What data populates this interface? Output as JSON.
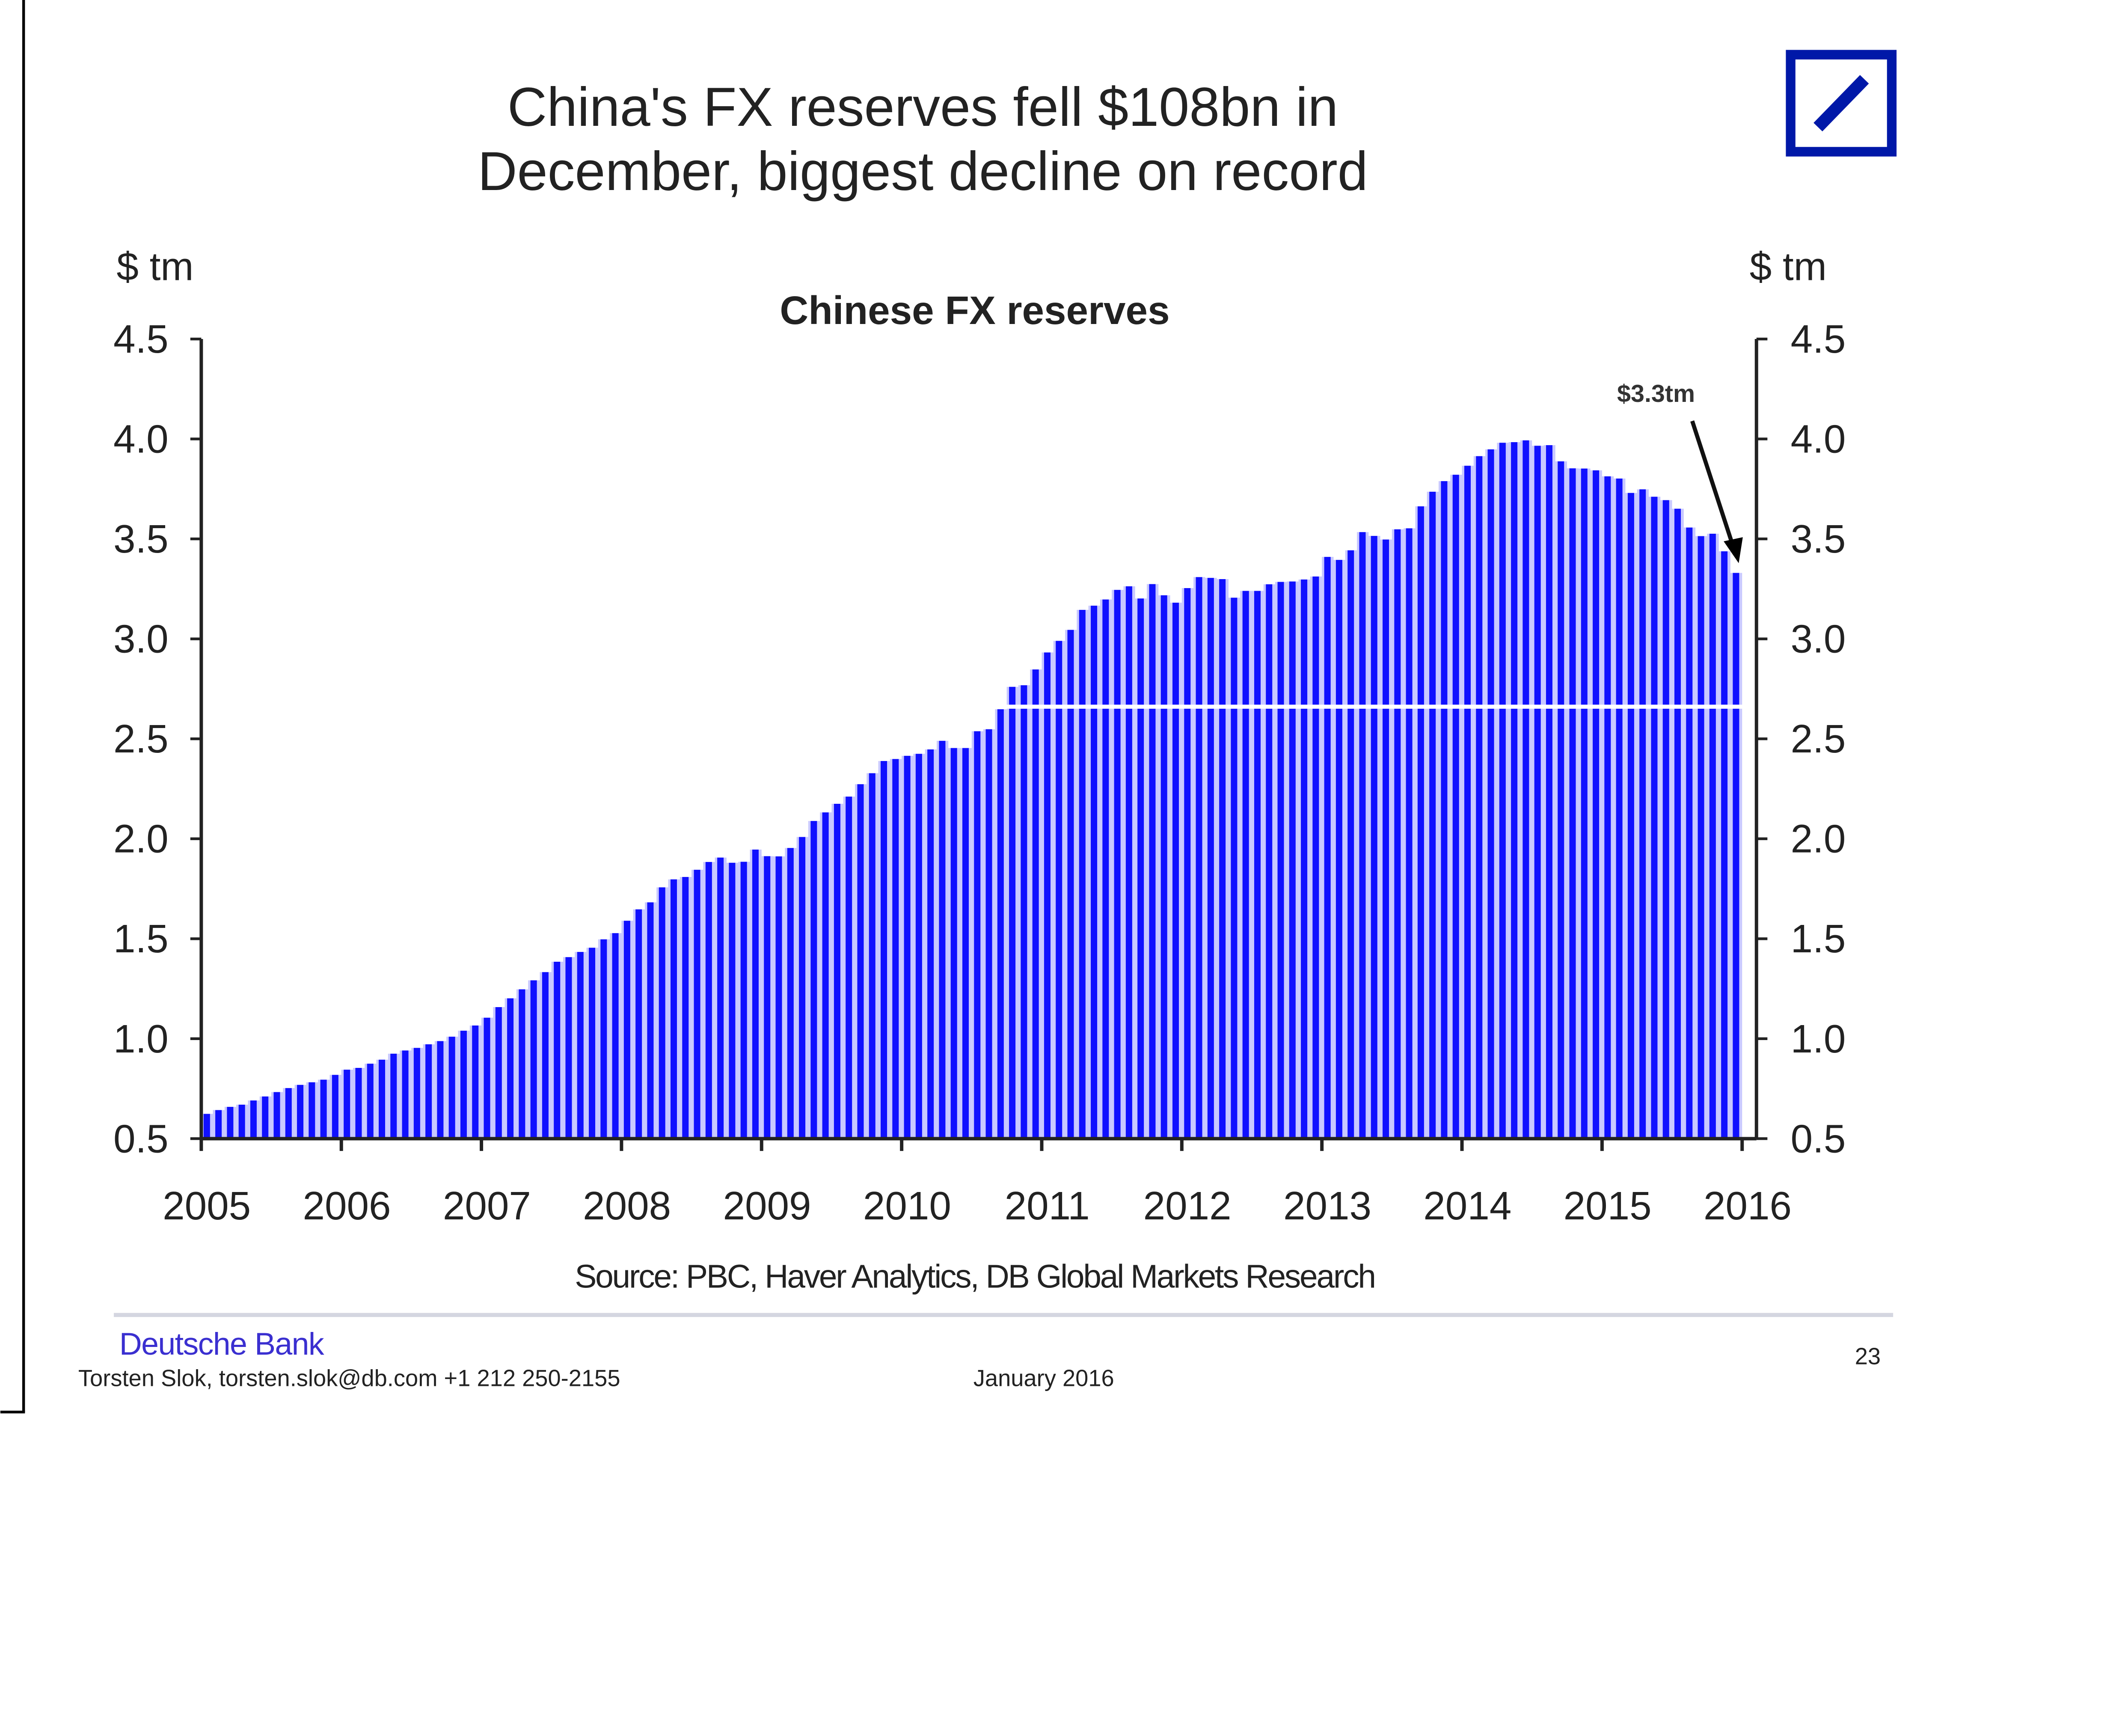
{
  "title_line1": "China's FX reserves fell $108bn in",
  "title_line2": "December, biggest decline on record",
  "footer": {
    "source": "Source: PBC,  Haver Analytics, DB Global Markets Research",
    "brand": "Deutsche Bank",
    "author": "Torsten Slok, torsten.slok@db.com +1 212 250-2155",
    "date": "January 2016",
    "page": "23"
  },
  "colors": {
    "bar": "#1010ff",
    "bar_gap": "#c8c8ff",
    "logo": "#0018a8"
  },
  "chart_data": {
    "type": "bar",
    "title": "Chinese FX reserves",
    "ylabel_left": "$ tm",
    "ylabel_right": "$ tm",
    "ylim": [
      0.5,
      4.5
    ],
    "yticks": [
      "0.5",
      "1.0",
      "1.5",
      "2.0",
      "2.5",
      "3.0",
      "3.5",
      "4.0",
      "4.5"
    ],
    "xticks": [
      "2005",
      "2006",
      "2007",
      "2008",
      "2009",
      "2010",
      "2011",
      "2012",
      "2013",
      "2014",
      "2015",
      "2016"
    ],
    "x_start_year": 2005,
    "frequency": "monthly",
    "annotation": {
      "text": "$3.3tm",
      "points_to": "Dec 2015"
    },
    "values": [
      0.624,
      0.643,
      0.659,
      0.67,
      0.691,
      0.711,
      0.733,
      0.753,
      0.769,
      0.782,
      0.795,
      0.819,
      0.845,
      0.854,
      0.875,
      0.895,
      0.925,
      0.941,
      0.954,
      0.972,
      0.988,
      1.01,
      1.04,
      1.066,
      1.105,
      1.158,
      1.202,
      1.247,
      1.292,
      1.333,
      1.385,
      1.408,
      1.434,
      1.455,
      1.497,
      1.528,
      1.59,
      1.647,
      1.682,
      1.757,
      1.797,
      1.809,
      1.845,
      1.884,
      1.906,
      1.88,
      1.885,
      1.946,
      1.913,
      1.912,
      1.954,
      2.009,
      2.089,
      2.132,
      2.175,
      2.211,
      2.273,
      2.328,
      2.389,
      2.399,
      2.415,
      2.425,
      2.447,
      2.49,
      2.454,
      2.454,
      2.538,
      2.548,
      2.648,
      2.76,
      2.768,
      2.847,
      2.932,
      2.99,
      3.045,
      3.145,
      3.166,
      3.197,
      3.245,
      3.263,
      3.202,
      3.274,
      3.218,
      3.181,
      3.254,
      3.309,
      3.305,
      3.299,
      3.206,
      3.24,
      3.24,
      3.273,
      3.285,
      3.287,
      3.297,
      3.312,
      3.41,
      3.395,
      3.443,
      3.534,
      3.515,
      3.497,
      3.548,
      3.553,
      3.663,
      3.736,
      3.789,
      3.821,
      3.866,
      3.914,
      3.948,
      3.981,
      3.984,
      3.993,
      3.966,
      3.969,
      3.888,
      3.853,
      3.852,
      3.843,
      3.813,
      3.802,
      3.73,
      3.748,
      3.711,
      3.694,
      3.651,
      3.557,
      3.514,
      3.526,
      3.438,
      3.33
    ]
  }
}
